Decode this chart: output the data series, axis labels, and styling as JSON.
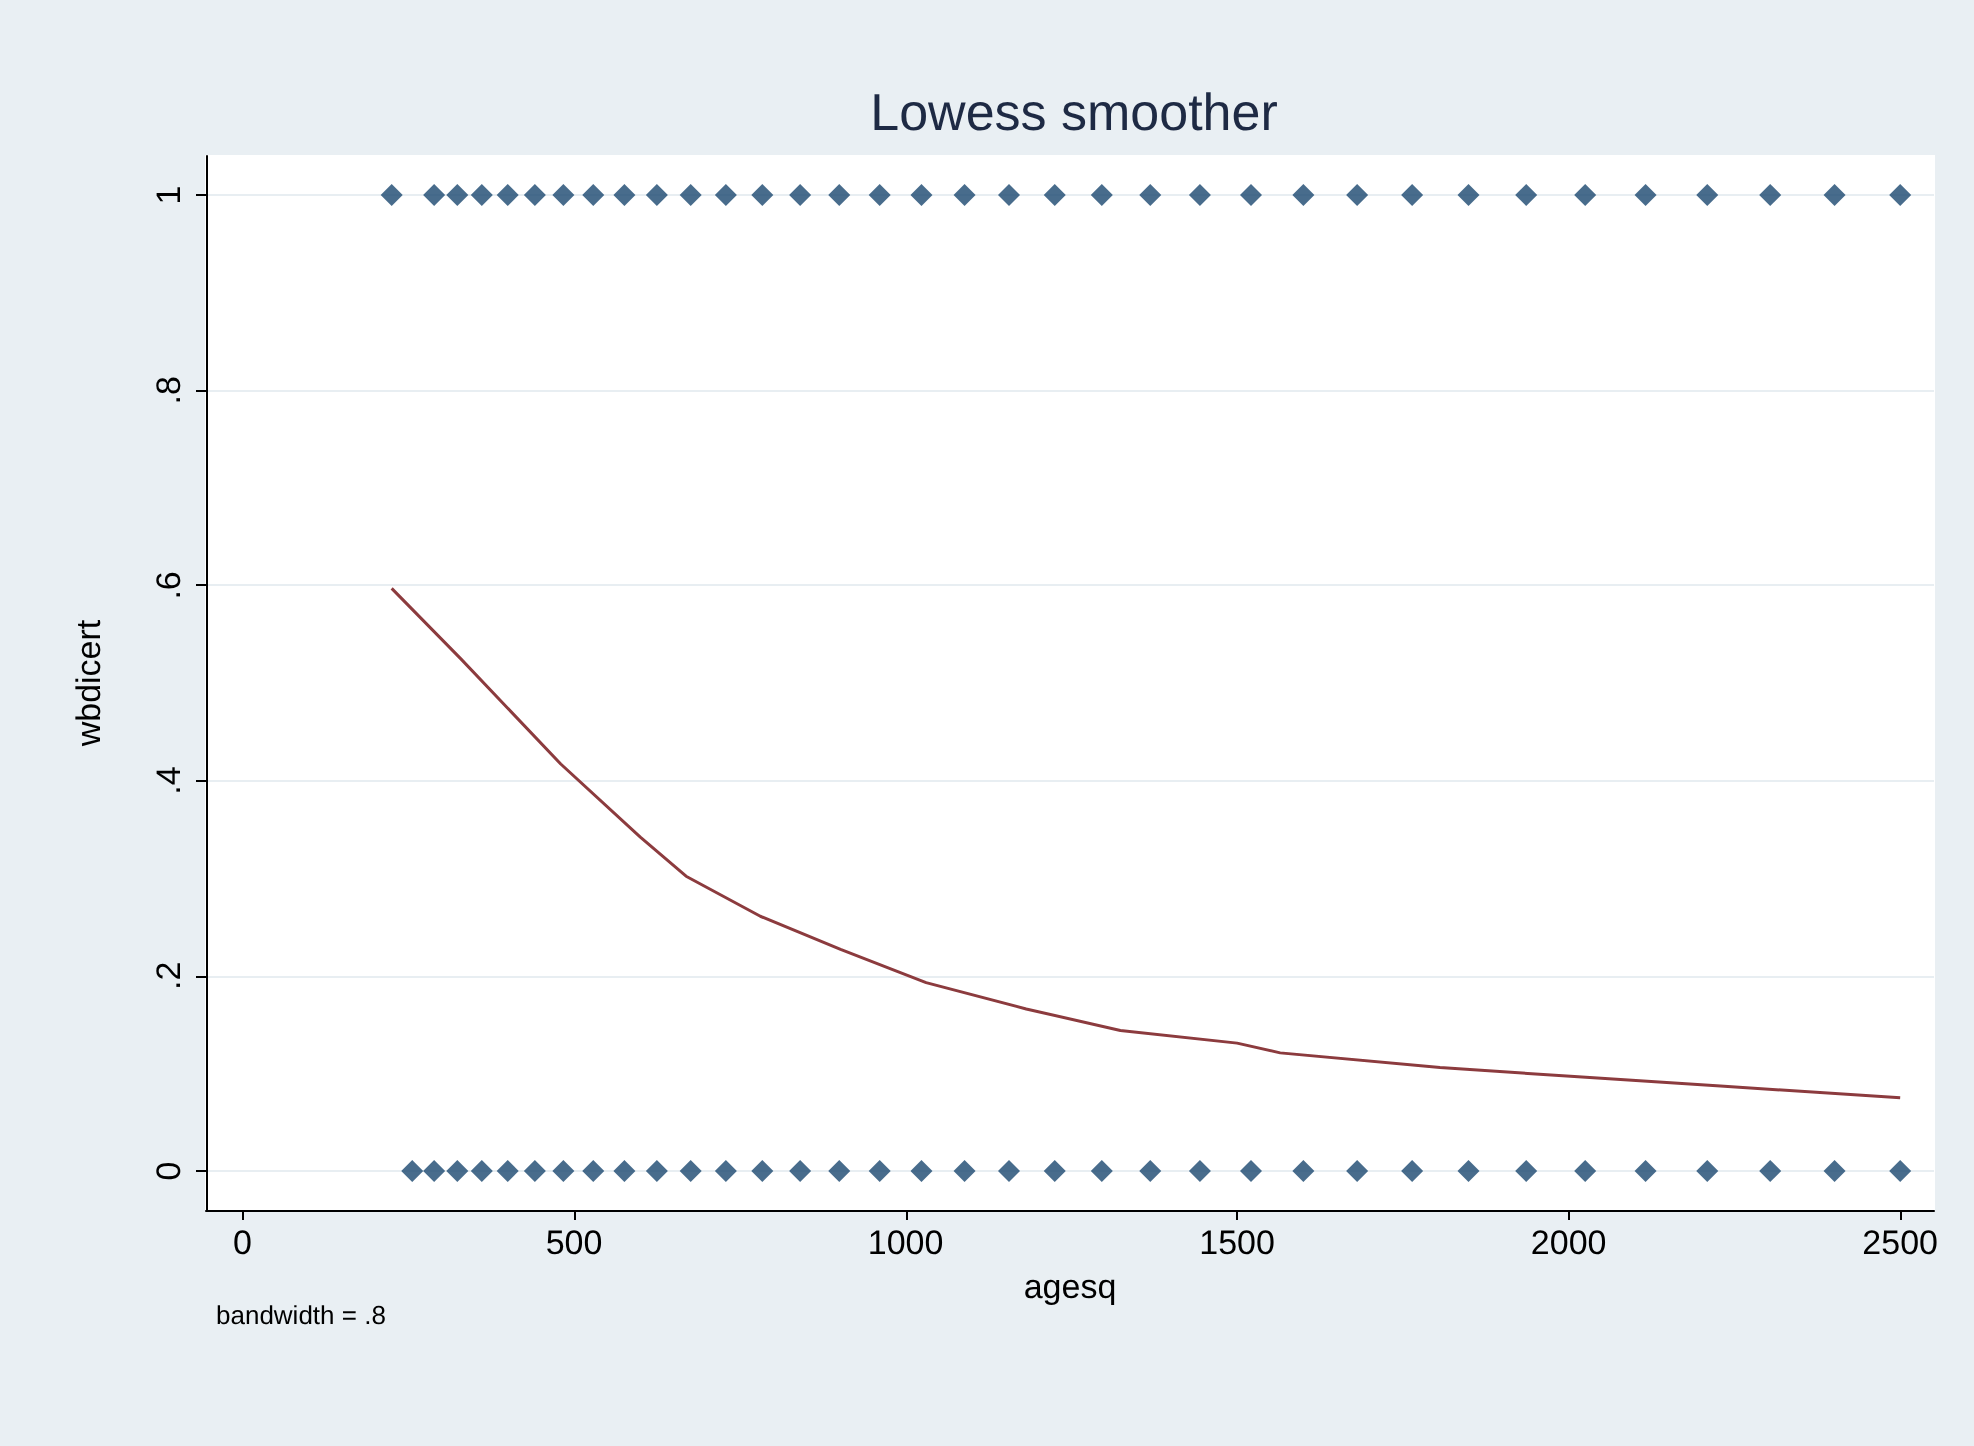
{
  "chart_data": {
    "type": "scatter",
    "title": "Lowess smoother",
    "xlabel": "agesq",
    "ylabel": "wbdicert",
    "annotations": [
      "bandwidth = .8"
    ],
    "xlim": [
      -55,
      2551
    ],
    "xticks": [
      0,
      500,
      1000,
      1500,
      2000,
      2500
    ],
    "ylim": [
      -0.04,
      1.04
    ],
    "yticks": [
      {
        "value": 0,
        "label": "0"
      },
      {
        "value": 0.2,
        "label": ".2"
      },
      {
        "value": 0.4,
        "label": ".4"
      },
      {
        "value": 0.6,
        "label": ".6"
      },
      {
        "value": 0.8,
        "label": ".8"
      },
      {
        "value": 1,
        "label": "1"
      }
    ],
    "grid": "y",
    "marker": "diamond",
    "series": [
      {
        "color": "#1a476f",
        "x": [
          225,
          289,
          324,
          361,
          400,
          441,
          484,
          529,
          576,
          625,
          676,
          729,
          784,
          841,
          900,
          961,
          1024,
          1089,
          1156,
          1225,
          1296,
          1369,
          1444,
          1521,
          1600,
          1681,
          1764,
          1849,
          1936,
          2025,
          2116,
          2209,
          2304,
          2401,
          2500
        ],
        "values": [
          1,
          1,
          1,
          1,
          1,
          1,
          1,
          1,
          1,
          1,
          1,
          1,
          1,
          1,
          1,
          1,
          1,
          1,
          1,
          1,
          1,
          1,
          1,
          1,
          1,
          1,
          1,
          1,
          1,
          1,
          1,
          1,
          1,
          1,
          1
        ]
      },
      {
        "color": "#1a476f",
        "x": [
          256,
          289,
          324,
          361,
          400,
          441,
          484,
          529,
          576,
          625,
          676,
          729,
          784,
          841,
          900,
          961,
          1024,
          1089,
          1156,
          1225,
          1296,
          1369,
          1444,
          1521,
          1600,
          1681,
          1764,
          1849,
          1936,
          2025,
          2116,
          2209,
          2304,
          2401,
          2500
        ],
        "values": [
          0,
          0,
          0,
          0,
          0,
          0,
          0,
          0,
          0,
          0,
          0,
          0,
          0,
          0,
          0,
          0,
          0,
          0,
          0,
          0,
          0,
          0,
          0,
          0,
          0,
          0,
          0,
          0,
          0,
          0,
          0,
          0,
          0,
          0,
          0
        ]
      },
      {
        "type": "line",
        "color": "#8c3b3e",
        "marker": "none",
        "x": [
          225,
          329,
          480,
          600,
          669,
          781,
          902,
          1031,
          1182,
          1324,
          1500,
          1565,
          1806,
          2026,
          2229,
          2500
        ],
        "values": [
          0.597,
          0.525,
          0.417,
          0.342,
          0.302,
          0.261,
          0.227,
          0.193,
          0.166,
          0.144,
          0.131,
          0.121,
          0.106,
          0.096,
          0.087,
          0.075
        ]
      }
    ]
  }
}
